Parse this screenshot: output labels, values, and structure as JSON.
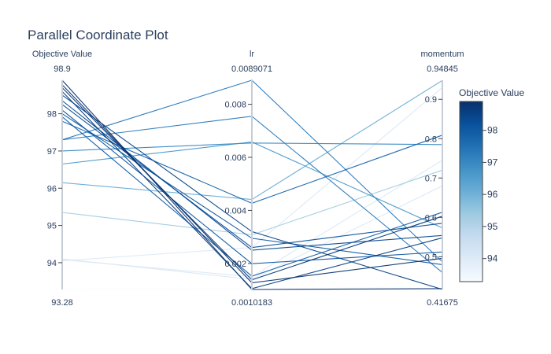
{
  "chart_data": {
    "type": "parallel_coordinates",
    "title": "Parallel Coordinate Plot",
    "dimensions": [
      {
        "label": "Objective Value",
        "range": [
          93.28,
          98.9
        ],
        "range_labels": [
          "93.28",
          "98.9"
        ],
        "ticks": [
          94,
          95,
          96,
          97,
          98
        ]
      },
      {
        "label": "lr",
        "range": [
          0.0010183,
          0.0089071
        ],
        "range_labels": [
          "0.0010183",
          "0.0089071"
        ],
        "ticks": [
          "0.002",
          "0.004",
          "0.006",
          "0.008"
        ]
      },
      {
        "label": "momentum",
        "range": [
          0.41675,
          0.94845
        ],
        "range_labels": [
          "0.41675",
          "0.94845"
        ],
        "ticks": [
          "0.5",
          "0.6",
          "0.7",
          "0.8",
          "0.9"
        ]
      }
    ],
    "colorbar": {
      "title": "Objective Value",
      "colorscale": "Blues",
      "range": [
        93.28,
        98.9
      ],
      "ticks": [
        94,
        95,
        96,
        97,
        98
      ]
    },
    "lines": [
      {
        "objective": 98.9,
        "lr": 0.0010183,
        "momentum": 0.419
      },
      {
        "objective": 98.78,
        "lr": 0.00127,
        "momentum": 0.496
      },
      {
        "objective": 98.7,
        "lr": 0.00138,
        "momentum": 0.603
      },
      {
        "objective": 98.6,
        "lr": 0.00105,
        "momentum": 0.548
      },
      {
        "objective": 98.5,
        "lr": 0.0032,
        "momentum": 0.417
      },
      {
        "objective": 98.35,
        "lr": 0.0025,
        "momentum": 0.554
      },
      {
        "objective": 98.25,
        "lr": 0.0026,
        "momentum": 0.585
      },
      {
        "objective": 98.1,
        "lr": 0.00199,
        "momentum": 0.512
      },
      {
        "objective": 98.0,
        "lr": 0.00295,
        "momentum": 0.48
      },
      {
        "objective": 97.92,
        "lr": 0.00152,
        "momentum": 0.613
      },
      {
        "objective": 97.8,
        "lr": 0.00427,
        "momentum": 0.809
      },
      {
        "objective": 97.3,
        "lr": 0.0089071,
        "momentum": 0.487
      },
      {
        "objective": 97.3,
        "lr": 0.00755,
        "momentum": 0.46
      },
      {
        "objective": 97.0,
        "lr": 0.00654,
        "momentum": 0.785
      },
      {
        "objective": 96.65,
        "lr": 0.00658,
        "momentum": 0.573
      },
      {
        "objective": 96.15,
        "lr": 0.00441,
        "momentum": 0.948
      },
      {
        "objective": 95.35,
        "lr": 0.00308,
        "momentum": 0.72
      },
      {
        "objective": 94.1,
        "lr": 0.0014,
        "momentum": 0.68
      },
      {
        "objective": 94.08,
        "lr": 0.0015,
        "momentum": 0.745
      },
      {
        "objective": 94.05,
        "lr": 0.0026,
        "momentum": 0.93
      },
      {
        "objective": 93.28,
        "lr": 0.00103,
        "momentum": 0.424
      }
    ]
  }
}
